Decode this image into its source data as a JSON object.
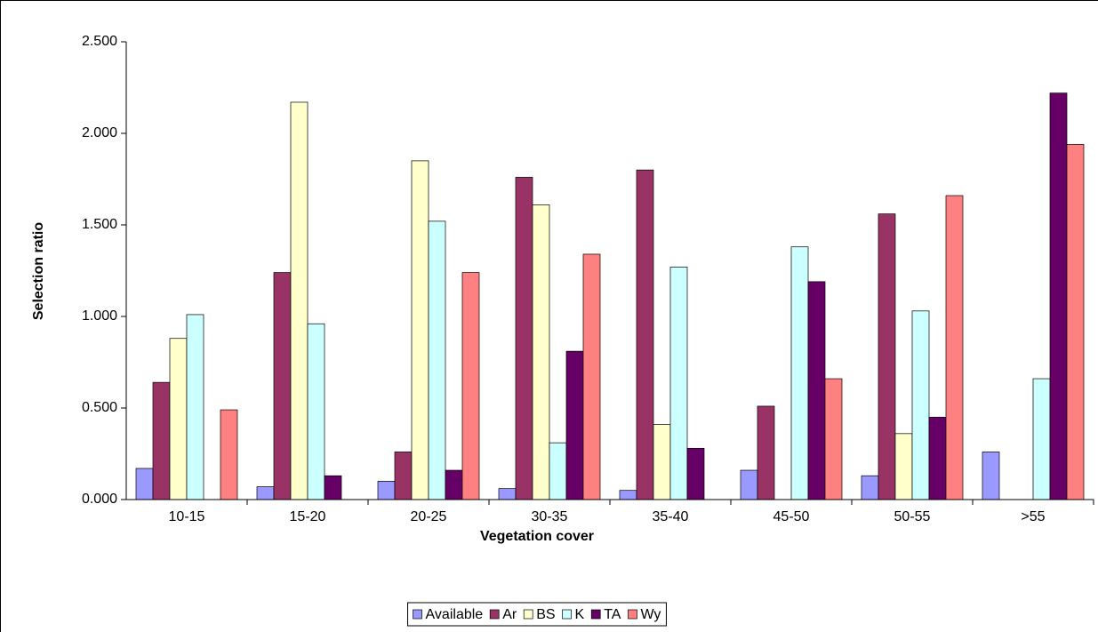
{
  "chart_data": {
    "type": "bar",
    "xlabel": "Vegetation cover",
    "ylabel": "Selection ratio",
    "categories": [
      "10-15",
      "15-20",
      "20-25",
      "30-35",
      "35-40",
      "45-50",
      "50-55",
      ">55"
    ],
    "series": [
      {
        "name": "Available",
        "color": "#9999ff",
        "values": [
          0.17,
          0.07,
          0.1,
          0.06,
          0.05,
          0.16,
          0.13,
          0.26
        ]
      },
      {
        "name": "Ar",
        "color": "#993366",
        "values": [
          0.64,
          1.24,
          0.26,
          1.76,
          1.8,
          0.51,
          1.56,
          0
        ]
      },
      {
        "name": "BS",
        "color": "#ffffcc",
        "values": [
          0.88,
          2.17,
          1.85,
          1.61,
          0.41,
          0,
          0.36,
          0
        ]
      },
      {
        "name": "K",
        "color": "#ccffff",
        "values": [
          1.01,
          0.96,
          1.52,
          0.31,
          1.27,
          1.38,
          1.03,
          0.66
        ]
      },
      {
        "name": "TA",
        "color": "#660066",
        "values": [
          0,
          0.13,
          0.16,
          0.81,
          0.28,
          1.19,
          0.45,
          2.22
        ]
      },
      {
        "name": "Wy",
        "color": "#ff8080",
        "values": [
          0.49,
          0,
          1.24,
          1.34,
          0,
          0.66,
          1.66,
          1.94
        ]
      }
    ],
    "ylim": [
      0,
      2.5
    ],
    "yticks": [
      {
        "value": 0,
        "label": "0.000"
      },
      {
        "value": 0.5,
        "label": "0.500"
      },
      {
        "value": 1,
        "label": "1.000"
      },
      {
        "value": 1.5,
        "label": "1.500"
      },
      {
        "value": 2,
        "label": "2.000"
      },
      {
        "value": 2.5,
        "label": "2.500"
      }
    ],
    "grid": false,
    "legend": "bottom"
  }
}
